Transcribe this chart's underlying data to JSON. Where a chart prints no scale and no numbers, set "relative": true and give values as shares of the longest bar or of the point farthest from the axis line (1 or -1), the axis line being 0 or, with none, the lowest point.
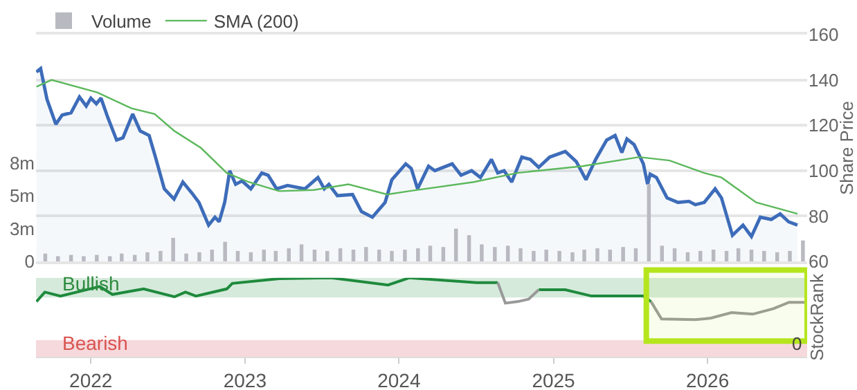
{
  "chart_data": [
    {
      "type": "line",
      "legend": "top left",
      "grid": "y",
      "tick_labels": "y",
      "ylabel": "Share Price",
      "xlim": [
        "2021-08-24",
        "2026-08-25"
      ],
      "ylim": [
        60,
        160
      ],
      "yticks": [
        60,
        80,
        100,
        120,
        140,
        160
      ],
      "y2lim": [
        0,
        17.3
      ],
      "y2ticks": [
        0,
        {
          "value": 2.5,
          "label": "3m"
        },
        {
          "value": 5,
          "label": "5m"
        },
        {
          "value": 7.5,
          "label": "8m"
        }
      ],
      "series": [
        {
          "type": "bar",
          "axis": "y2",
          "name": "Volume",
          "color": "#b9b9c1",
          "x": [
            "2021-09-15",
            "2021-10-15",
            "2021-11-15",
            "2021-12-15",
            "2022-01-15",
            "2022-02-15",
            "2022-03-15",
            "2022-04-15",
            "2022-05-15",
            "2022-06-15",
            "2022-07-15",
            "2022-08-15",
            "2022-09-15",
            "2022-10-15",
            "2022-11-15",
            "2022-12-15",
            "2023-01-15",
            "2023-02-15",
            "2023-03-15",
            "2023-04-15",
            "2023-05-15",
            "2023-06-15",
            "2023-07-15",
            "2023-08-15",
            "2023-09-15",
            "2023-10-15",
            "2023-11-15",
            "2023-12-15",
            "2024-01-15",
            "2024-02-15",
            "2024-03-15",
            "2024-04-15",
            "2024-05-15",
            "2024-06-15",
            "2024-07-15",
            "2024-08-15",
            "2024-09-15",
            "2024-10-15",
            "2024-11-15",
            "2024-12-15",
            "2025-01-15",
            "2025-02-15",
            "2025-03-15",
            "2025-04-15",
            "2025-05-15",
            "2025-06-15",
            "2025-07-15",
            "2025-08-15",
            "2025-09-15",
            "2025-10-15",
            "2025-11-15",
            "2025-12-15",
            "2026-01-15",
            "2026-02-15",
            "2026-03-15",
            "2026-04-15",
            "2026-05-15",
            "2026-06-15",
            "2026-07-15",
            "2026-08-15"
          ],
          "values": [
            0.6,
            0.4,
            0.5,
            0.4,
            0.5,
            0.4,
            0.6,
            0.5,
            0.7,
            0.8,
            1.8,
            0.6,
            0.7,
            0.9,
            1.5,
            0.8,
            0.7,
            0.9,
            0.8,
            1.0,
            1.3,
            0.9,
            0.8,
            1.0,
            0.9,
            1.1,
            0.9,
            0.8,
            0.9,
            1.0,
            1.2,
            1.1,
            2.5,
            2.0,
            1.3,
            1.1,
            1.2,
            1.0,
            0.8,
            0.9,
            0.8,
            0.7,
            0.9,
            1.0,
            0.9,
            1.1,
            1.0,
            5.9,
            1.2,
            1.0,
            0.7,
            0.8,
            0.9,
            0.8,
            1.0,
            0.9,
            0.8,
            0.7,
            0.8,
            1.6
          ]
        },
        {
          "type": "area",
          "color": "#3d6cb9",
          "x": [
            "2021-08-25",
            "2021-09-04",
            "2021-09-19",
            "2021-10-10",
            "2021-10-25",
            "2021-11-15",
            "2021-12-05",
            "2021-12-21",
            "2022-01-01",
            "2022-01-14",
            "2022-01-25",
            "2022-02-10",
            "2022-03-03",
            "2022-03-18",
            "2022-04-10",
            "2022-04-28",
            "2022-05-19",
            "2022-06-03",
            "2022-06-24",
            "2022-07-17",
            "2022-08-07",
            "2022-08-29",
            "2022-09-14",
            "2022-10-07",
            "2022-10-22",
            "2022-11-01",
            "2022-11-14",
            "2022-11-26",
            "2022-12-10",
            "2022-12-25",
            "2023-01-15",
            "2023-02-10",
            "2023-02-25",
            "2023-03-17",
            "2023-04-12",
            "2023-05-23",
            "2023-06-23",
            "2023-07-08",
            "2023-07-19",
            "2023-08-08",
            "2023-09-13",
            "2023-10-04",
            "2023-10-30",
            "2023-11-29",
            "2023-12-15",
            "2024-01-17",
            "2024-01-30",
            "2024-02-14",
            "2024-03-11",
            "2024-03-26",
            "2024-05-06",
            "2024-05-27",
            "2024-06-21",
            "2024-07-12",
            "2024-08-07",
            "2024-08-22",
            "2024-09-06",
            "2024-09-24",
            "2024-10-18",
            "2024-11-07",
            "2024-11-27",
            "2024-12-23",
            "2025-01-29",
            "2025-02-24",
            "2025-03-19",
            "2025-04-11",
            "2025-05-07",
            "2025-05-27",
            "2025-06-12",
            "2025-06-24",
            "2025-07-11",
            "2025-08-02",
            "2025-08-12",
            "2025-08-18",
            "2025-09-02",
            "2025-09-27",
            "2025-10-23",
            "2025-11-18",
            "2025-12-03",
            "2025-12-24",
            "2026-01-19",
            "2026-02-03",
            "2026-03-01",
            "2026-03-26",
            "2026-04-15",
            "2026-05-06",
            "2026-06-01",
            "2026-06-22",
            "2026-07-12",
            "2026-08-02"
          ],
          "values": [
            143.5,
            145,
            131.5,
            120.5,
            124.5,
            125.5,
            132.5,
            128.5,
            132,
            129.5,
            132,
            123.5,
            113.5,
            114.5,
            125,
            117.5,
            115.5,
            106,
            92,
            87.5,
            95,
            90,
            86,
            76,
            79.5,
            77.5,
            86,
            100,
            94,
            95.5,
            92,
            99,
            98,
            92,
            93.5,
            92,
            97,
            92,
            94,
            89,
            89.5,
            82,
            79.5,
            86,
            96,
            103,
            101,
            92,
            102,
            100,
            103,
            98,
            100,
            97,
            105,
            99,
            100,
            95,
            106,
            105,
            101.5,
            106,
            108.5,
            104,
            96,
            105,
            113.5,
            115.5,
            108,
            114,
            111.5,
            103,
            94,
            98.5,
            97,
            88,
            86,
            86.5,
            85,
            86,
            92,
            88,
            71.5,
            76,
            71,
            79.5,
            78.5,
            81,
            77.5,
            76
          ]
        },
        {
          "type": "line",
          "name": "SMA (200)",
          "color": "#5cb85c",
          "x": [
            "2021-08-25",
            "2021-09-30",
            "2022-01-16",
            "2022-04-07",
            "2022-06-01",
            "2022-07-18",
            "2022-09-19",
            "2022-11-19",
            "2023-01-10",
            "2023-03-23",
            "2023-06-13",
            "2023-09-03",
            "2023-12-04",
            "2024-01-25",
            "2024-06-26",
            "2024-10-07",
            "2025-03-11",
            "2025-07-23",
            "2025-10-03",
            "2025-12-24",
            "2026-02-03",
            "2026-04-26",
            "2026-08-02"
          ],
          "values": [
            137,
            140,
            134.5,
            127.5,
            125,
            117.5,
            110,
            99,
            95,
            91,
            91.5,
            94,
            89.5,
            91,
            95,
            99,
            102,
            106,
            104.5,
            99,
            97,
            86,
            81
          ]
        }
      ]
    },
    {
      "type": "line",
      "relative": true,
      "grid": false,
      "ylabel": "StockRank",
      "xlim": [
        "2021-08-24",
        "2026-08-25"
      ],
      "annotations": [
        "0"
      ],
      "xticks": [
        {
          "value": "2022-01-01",
          "label": "2022"
        },
        {
          "value": "2023-01-01",
          "label": "2023"
        },
        {
          "value": "2024-01-01",
          "label": "2024"
        },
        {
          "value": "2025-01-01",
          "label": "2025"
        },
        {
          "value": "2026-01-01",
          "label": "2026"
        }
      ],
      "bands": [
        {
          "axis": "y",
          "from": 0.75,
          "to": 1.0,
          "label": "Bullish",
          "color": "#d5eadb"
        },
        {
          "axis": "y",
          "from": 0,
          "to": 0.21,
          "label": "Bearish",
          "color": "#f6d9dc"
        },
        {
          "axis": "x",
          "from": "2025-08-09",
          "to": "2026-08-25",
          "color": "#b5e61d"
        }
      ],
      "x": [
        "2021-08-25",
        "2021-09-14",
        "2021-10-21",
        "2022-01-22",
        "2022-02-21",
        "2022-05-06",
        "2022-07-18",
        "2022-08-13",
        "2022-09-07",
        "2022-11-19",
        "2022-12-02",
        "2023-03-23",
        "2023-07-24",
        "2023-12-06",
        "2024-01-25",
        "2024-07-03",
        "2024-08-22",
        "2024-09-09",
        "2024-10-09",
        "2024-11-03",
        "2024-11-27",
        "2025-01-29",
        "2025-04-01",
        "2025-08-02",
        "2025-08-20",
        "2025-09-14",
        "2025-12-03",
        "2026-01-09",
        "2026-02-27",
        "2026-04-18",
        "2026-06-06",
        "2026-07-13",
        "2026-08-19"
      ],
      "series": [
        {
          "color": "#1e8a3c",
          "values": [
            0.7,
            0.82,
            0.77,
            0.89,
            0.79,
            0.86,
            0.76,
            0.82,
            0.77,
            0.86,
            0.93,
            0.99,
            1.0,
            0.91,
            1.0,
            0.94,
            0.94,
            null,
            null,
            null,
            0.85,
            0.85,
            0.77,
            0.77,
            0.7,
            null,
            null,
            null,
            null,
            null,
            null,
            null,
            null
          ]
        },
        {
          "color": "#999999",
          "values": [
            null,
            null,
            null,
            null,
            null,
            null,
            null,
            null,
            null,
            null,
            null,
            null,
            null,
            null,
            null,
            null,
            0.94,
            0.68,
            0.7,
            0.73,
            0.85,
            null,
            null,
            null,
            0.7,
            0.48,
            0.47,
            0.49,
            0.56,
            0.54,
            0.61,
            0.69,
            0.69
          ]
        }
      ]
    }
  ]
}
